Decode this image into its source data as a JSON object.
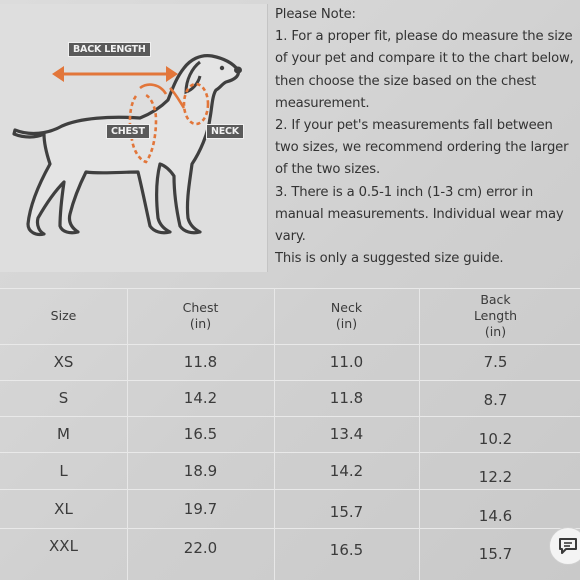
{
  "diagram": {
    "labels": {
      "back_length": "BACK LENGTH",
      "chest": "CHEST",
      "neck": "NECK"
    },
    "accent_color": "#e2763a"
  },
  "notes": {
    "heading": "Please Note:",
    "items": [
      "1. For a proper fit, please do measure the size of your pet and compare it to the chart below, then choose the size based on the chest measurement.",
      "2. If your pet's measurements fall between two sizes, we recommend ordering the larger of the two sizes.",
      "3. There is a 0.5-1 inch (1-3 cm) error in manual measurements. Individual wear may vary."
    ],
    "footer": "This is only a suggested size guide."
  },
  "size_table": {
    "headers": {
      "size": "Size",
      "chest_line1": "Chest",
      "chest_line2": "(in)",
      "neck_line1": "Neck",
      "neck_line2": "(in)",
      "back_line1": "Back",
      "back_line2": "Length",
      "back_line3": "(in)"
    },
    "rows": [
      {
        "size": "XS",
        "chest": "11.8",
        "neck": "11.0",
        "back": "7.5"
      },
      {
        "size": "S",
        "chest": "14.2",
        "neck": "11.8",
        "back": "8.7"
      },
      {
        "size": "M",
        "chest": "16.5",
        "neck": "13.4",
        "back": "10.2"
      },
      {
        "size": "L",
        "chest": "18.9",
        "neck": "14.2",
        "back": "12.2"
      },
      {
        "size": "XL",
        "chest": "19.7",
        "neck": "15.7",
        "back": "14.6"
      },
      {
        "size": "XXL",
        "chest": "22.0",
        "neck": "16.5",
        "back": "15.7"
      }
    ]
  },
  "chat_button": {
    "icon": "chat-icon"
  }
}
